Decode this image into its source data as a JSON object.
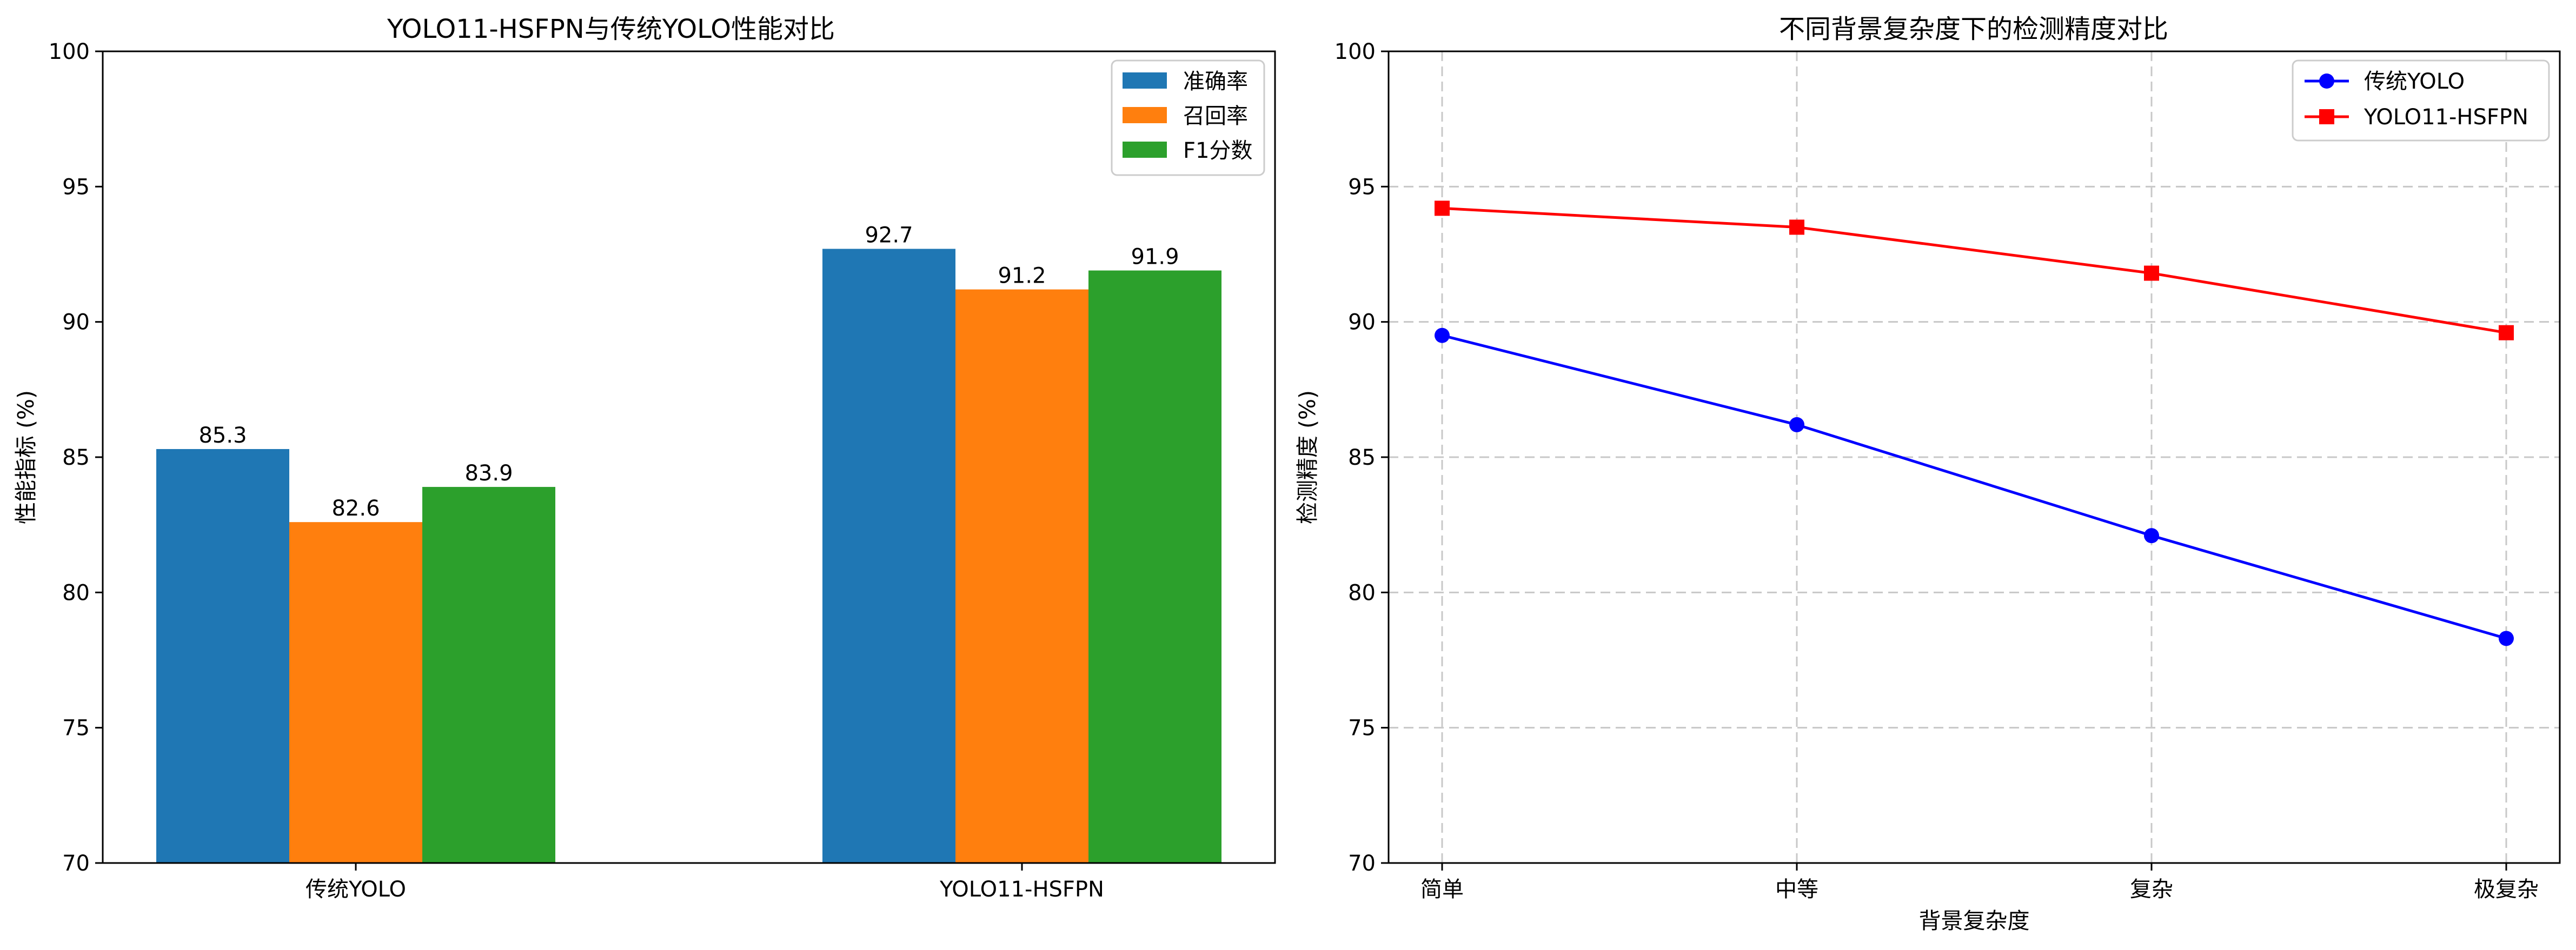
{
  "chart_data": [
    {
      "type": "bar",
      "title": "YOLO11-HSFPN与传统YOLO性能对比",
      "xlabel": "",
      "ylabel": "性能指标 (%)",
      "ylim": [
        70,
        100
      ],
      "yticks": [
        70,
        75,
        80,
        85,
        90,
        95,
        100
      ],
      "categories": [
        "传统YOLO",
        "YOLO11-HSFPN"
      ],
      "series": [
        {
          "name": "准确率",
          "color": "#1f77b4",
          "values": [
            85.3,
            92.7
          ]
        },
        {
          "name": "召回率",
          "color": "#ff7f0e",
          "values": [
            82.6,
            91.2
          ]
        },
        {
          "name": "F1分数",
          "color": "#2ca02c",
          "values": [
            83.9,
            91.9
          ]
        }
      ],
      "data_labels": true,
      "grid": false,
      "legend_position": "top-right"
    },
    {
      "type": "line",
      "title": "不同背景复杂度下的检测精度对比",
      "xlabel": "背景复杂度",
      "ylabel": "检测精度 (%)",
      "ylim": [
        70,
        100
      ],
      "yticks": [
        70,
        75,
        80,
        85,
        90,
        95,
        100
      ],
      "categories": [
        "简单",
        "中等",
        "复杂",
        "极复杂"
      ],
      "series": [
        {
          "name": "传统YOLO",
          "color": "#0000ff",
          "marker": "circle",
          "values": [
            89.5,
            86.2,
            82.1,
            78.3
          ]
        },
        {
          "name": "YOLO11-HSFPN",
          "color": "#ff0000",
          "marker": "square",
          "values": [
            94.2,
            93.5,
            91.8,
            89.6
          ]
        }
      ],
      "grid": true,
      "legend_position": "top-right"
    }
  ]
}
